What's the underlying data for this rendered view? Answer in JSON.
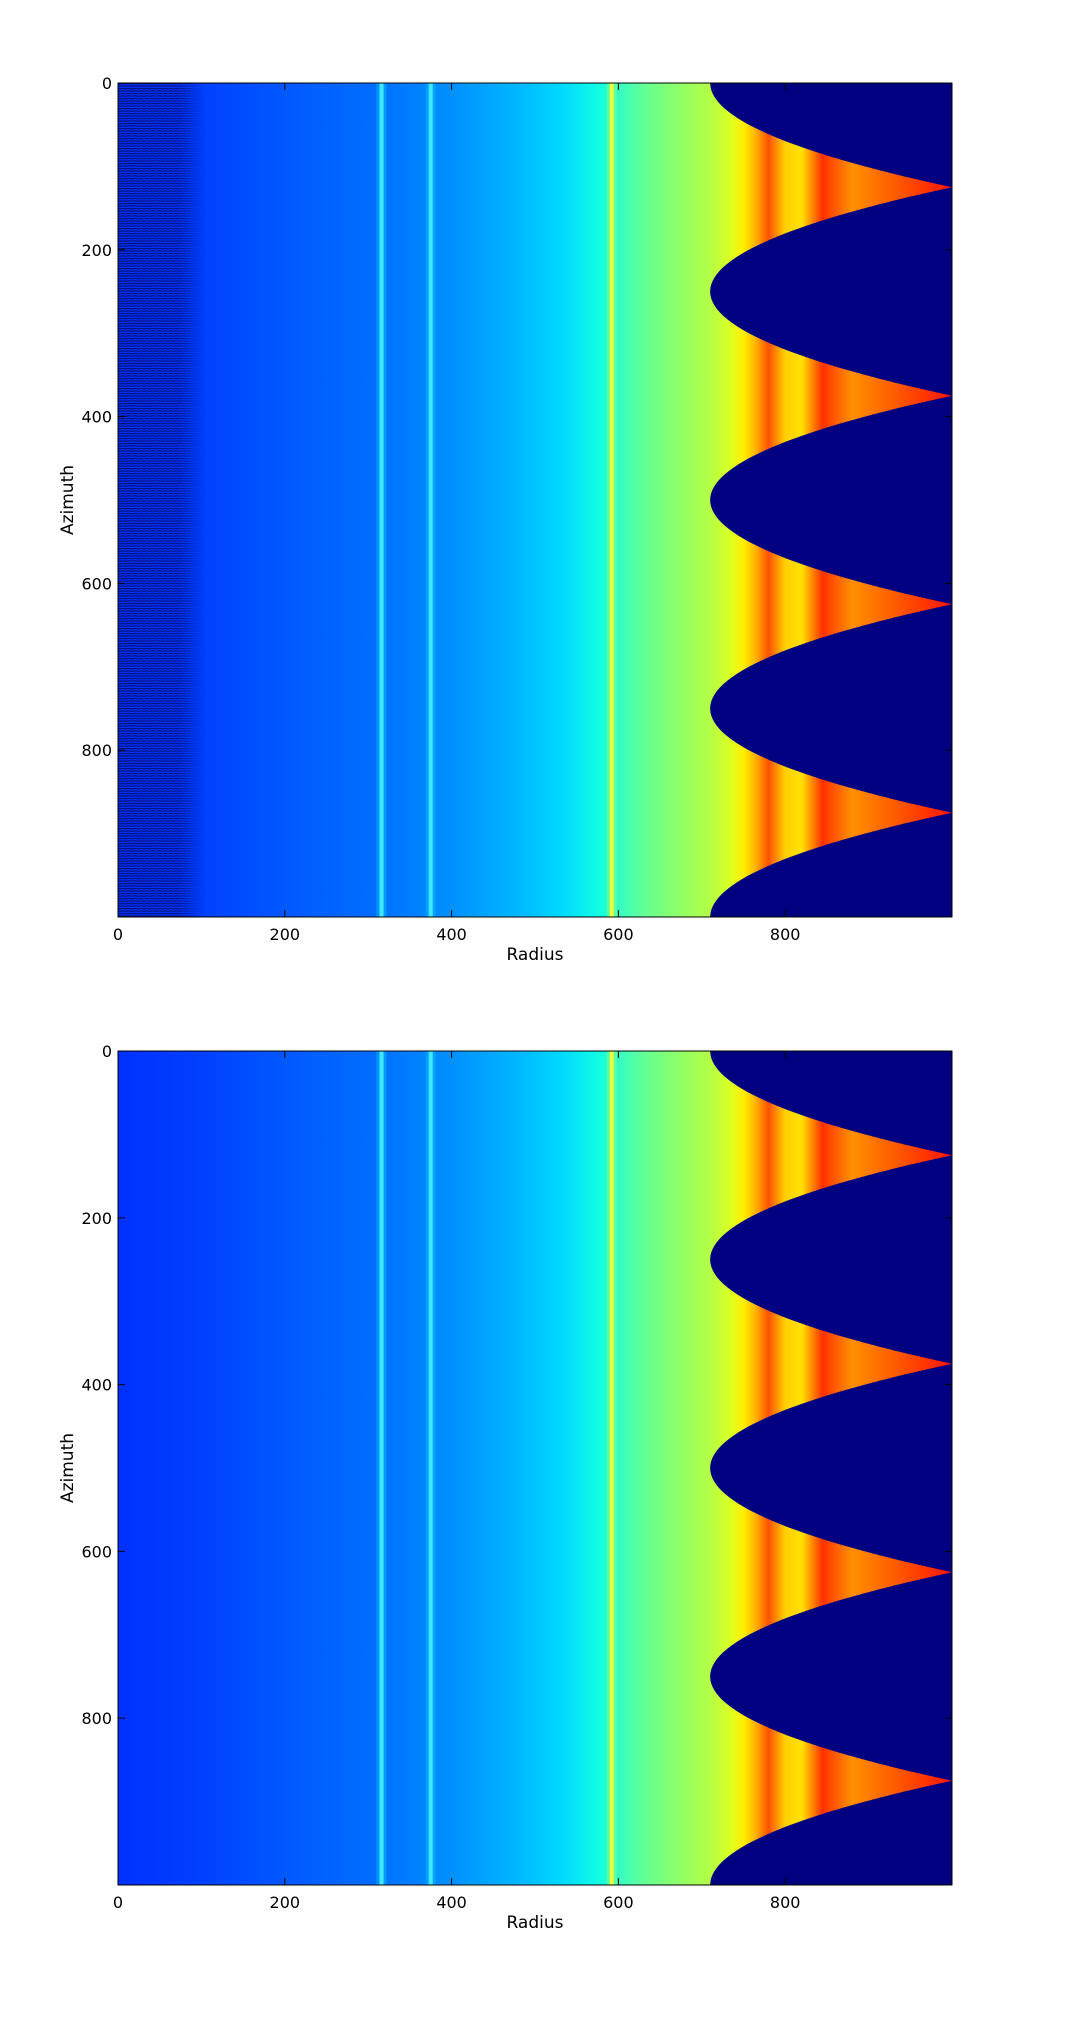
{
  "chart_data": [
    {
      "type": "heatmap",
      "colormap": "jet",
      "xlabel": "Radius",
      "ylabel": "Azimuth",
      "xlim": [
        0,
        1000
      ],
      "ylim": [
        1000,
        0
      ],
      "xticks": [
        0,
        200,
        400,
        600,
        800
      ],
      "yticks": [
        0,
        200,
        400,
        600,
        800
      ],
      "grid": false,
      "legend": "none",
      "features": {
        "inner_speckle_radius_max": 105,
        "ridges_radius": [
          316,
          375,
          592
        ],
        "masked_region_radius_start": 710,
        "masked_lobe_centers_azimuth": [
          0,
          250,
          500,
          750,
          1000
        ],
        "mask_color": "#000080"
      }
    },
    {
      "type": "heatmap",
      "colormap": "jet",
      "xlabel": "Radius",
      "ylabel": "Azimuth",
      "xlim": [
        0,
        1000
      ],
      "ylim": [
        1000,
        0
      ],
      "xticks": [
        0,
        200,
        400,
        600,
        800
      ],
      "yticks": [
        0,
        200,
        400,
        600,
        800
      ],
      "grid": false,
      "legend": "none",
      "features": {
        "inner_speckle_radius_max": 0,
        "ridges_radius": [
          316,
          375,
          592
        ],
        "masked_region_radius_start": 710,
        "masked_lobe_centers_azimuth": [
          0,
          250,
          500,
          750,
          1000
        ],
        "mask_color": "#000080"
      }
    }
  ]
}
